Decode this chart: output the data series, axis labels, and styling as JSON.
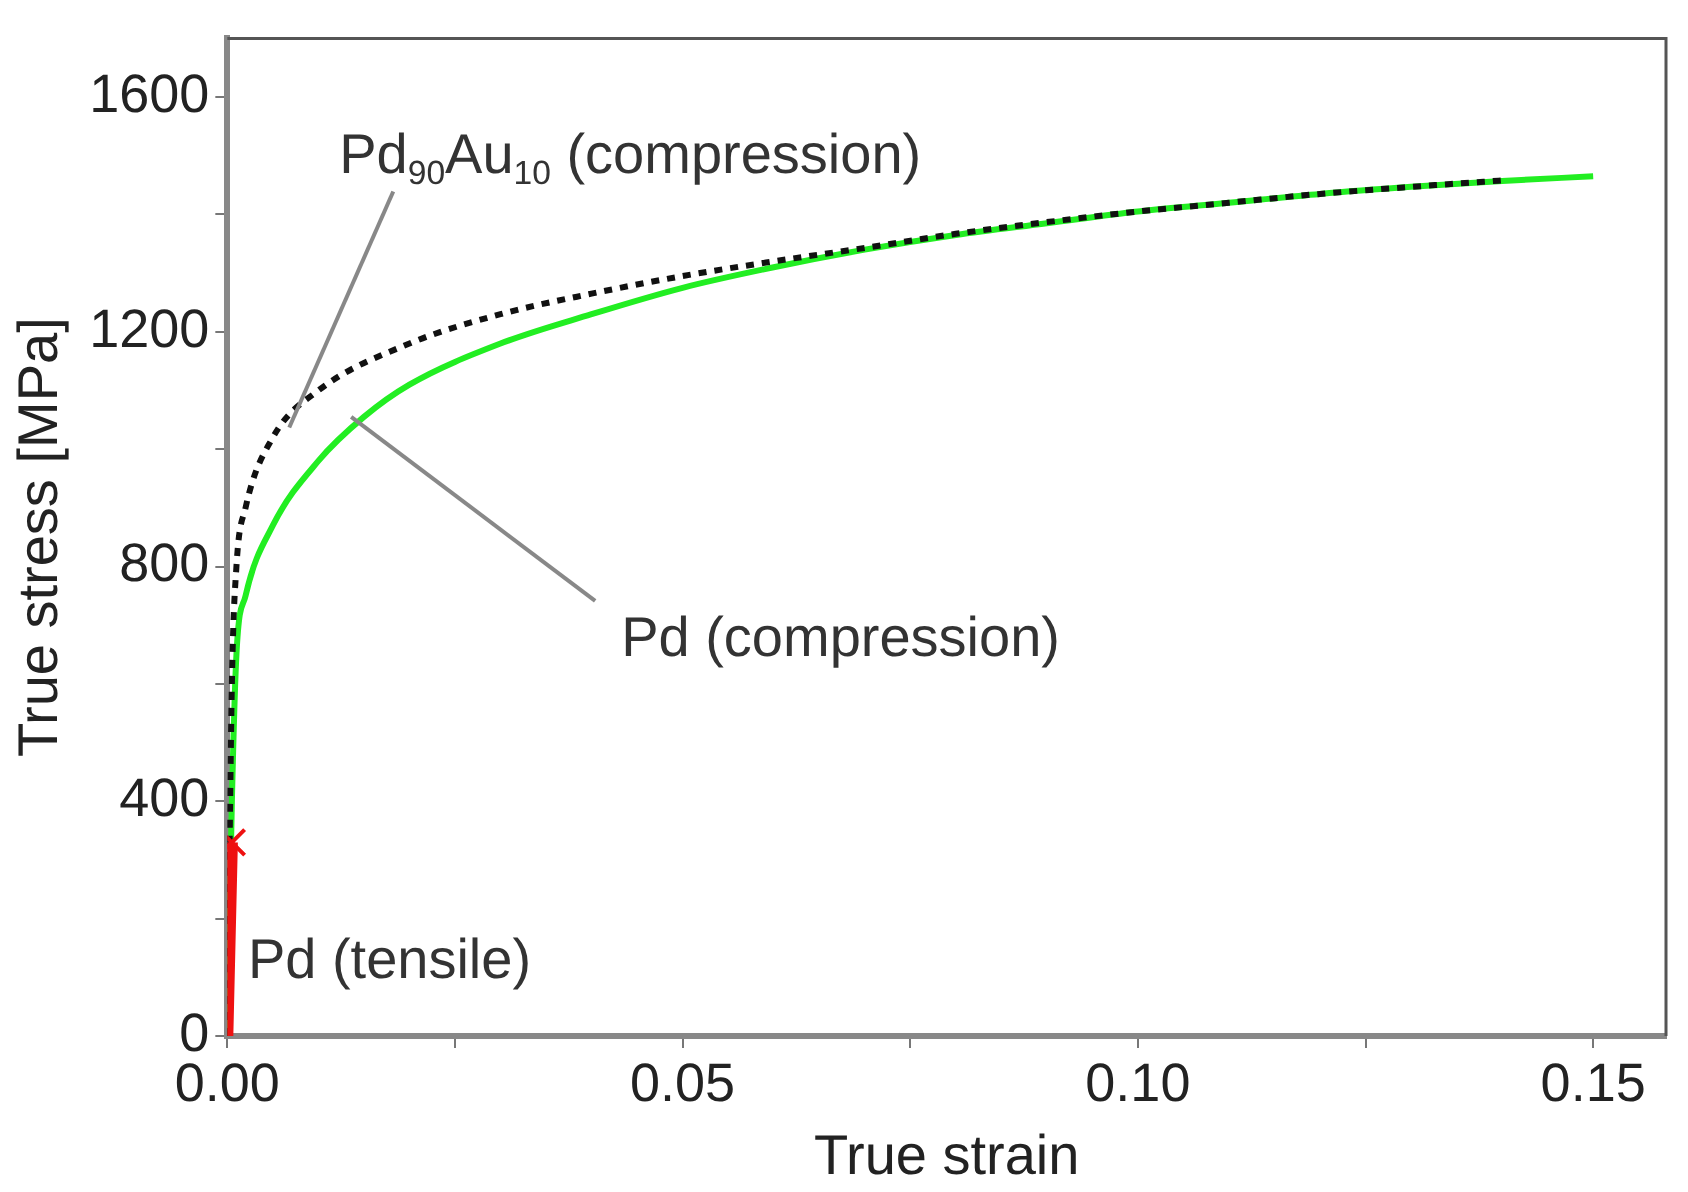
{
  "chart_data": {
    "type": "line",
    "xlabel": "True strain",
    "ylabel": "True stress [MPa]",
    "xlim": [
      0,
      0.158
    ],
    "ylim": [
      0,
      1700
    ],
    "xticks": [
      {
        "value": 0,
        "label": "0.00"
      },
      {
        "value": 0.025,
        "label": null
      },
      {
        "value": 0.05,
        "label": "0.05"
      },
      {
        "value": 0.075,
        "label": null
      },
      {
        "value": 0.1,
        "label": "0.10"
      },
      {
        "value": 0.125,
        "label": null
      },
      {
        "value": 0.15,
        "label": "0.15"
      }
    ],
    "yticks": [
      0,
      {
        "value": 200,
        "label": null
      },
      400,
      {
        "value": 600,
        "label": null
      },
      800,
      {
        "value": 1000,
        "label": null
      },
      1200,
      {
        "value": 1400,
        "label": null
      },
      1600
    ],
    "grid": false,
    "legend": false,
    "series": [
      {
        "color": "#22ee22",
        "line_style": "solid",
        "marker": "none",
        "x": [
          0,
          0.0005,
          0.001,
          0.002,
          0.005,
          0.01,
          0.015,
          0.02,
          0.03,
          0.04,
          0.05,
          0.06,
          0.07,
          0.08,
          0.09,
          0.1,
          0.11,
          0.12,
          0.13,
          0.14,
          0.15
        ],
        "values": [
          0,
          400,
          650,
          750,
          870,
          980,
          1055,
          1110,
          1180,
          1230,
          1275,
          1310,
          1340,
          1365,
          1385,
          1405,
          1420,
          1435,
          1447,
          1457,
          1465
        ]
      },
      {
        "color": "#111111",
        "line_style": "dotted",
        "marker": "none",
        "x": [
          0,
          0.0005,
          0.001,
          0.002,
          0.005,
          0.01,
          0.02,
          0.03,
          0.04,
          0.05,
          0.06,
          0.07,
          0.08,
          0.09,
          0.1,
          0.11,
          0.12,
          0.13,
          0.14
        ],
        "values": [
          0,
          600,
          800,
          900,
          1020,
          1100,
          1180,
          1230,
          1265,
          1295,
          1320,
          1343,
          1367,
          1387,
          1405,
          1420,
          1435,
          1447,
          1458
        ]
      },
      {
        "color": "#ee1111",
        "line_style": "solid",
        "marker": "cross",
        "x": [
          0,
          0.0005
        ],
        "values": [
          0,
          330
        ]
      }
    ],
    "annotations": [
      {
        "text": "Pd$_{90}$Au$_{10}$ (compression)",
        "x": 0.0068,
        "y": 1037
      },
      {
        "text": "Pd (compression)",
        "x": 0.0136,
        "y": 1055
      },
      {
        "text": "Pd (tensile)",
        "x": 0.0005,
        "y": 330
      }
    ]
  }
}
